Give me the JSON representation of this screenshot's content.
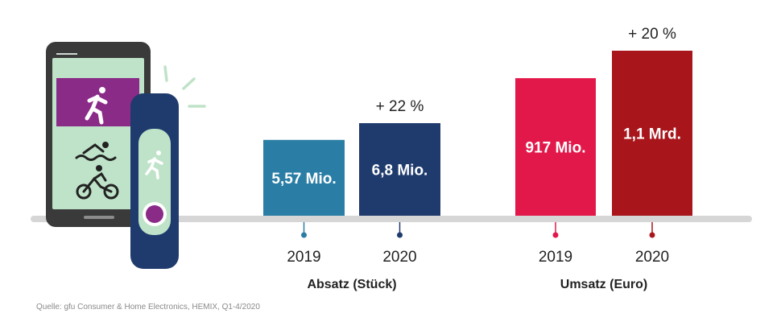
{
  "source": "Quelle: gfu Consumer & Home Electronics, HEMIX, Q1-4/2020",
  "colors": {
    "baseline": "#d6d6d6",
    "absatz_2019": "#2a7ea5",
    "absatz_2020": "#1f3b6d",
    "umsatz_2019": "#e3184a",
    "umsatz_2020": "#a8161b",
    "text": "#222222"
  },
  "chart_data": [
    {
      "type": "bar",
      "title": "Absatz (Stück)",
      "categories": [
        "2019",
        "2020"
      ],
      "values": [
        5.57,
        6.8
      ],
      "unit": "Mio.",
      "data_labels": [
        "5,57 Mio.",
        "6,8 Mio."
      ],
      "growth_label": "+ 22 %",
      "ylim": [
        0,
        6.8
      ]
    },
    {
      "type": "bar",
      "title": "Umsatz (Euro)",
      "categories": [
        "2019",
        "2020"
      ],
      "values": [
        917,
        1100
      ],
      "unit": "Mio. Euro",
      "data_labels": [
        "917 Mio.",
        "1,1 Mrd."
      ],
      "growth_label": "+ 20 %",
      "ylim": [
        0,
        1100
      ]
    }
  ],
  "icons": [
    "smartphone-icon",
    "running-icon",
    "swimming-icon",
    "cycling-icon",
    "fitness-band-icon"
  ]
}
